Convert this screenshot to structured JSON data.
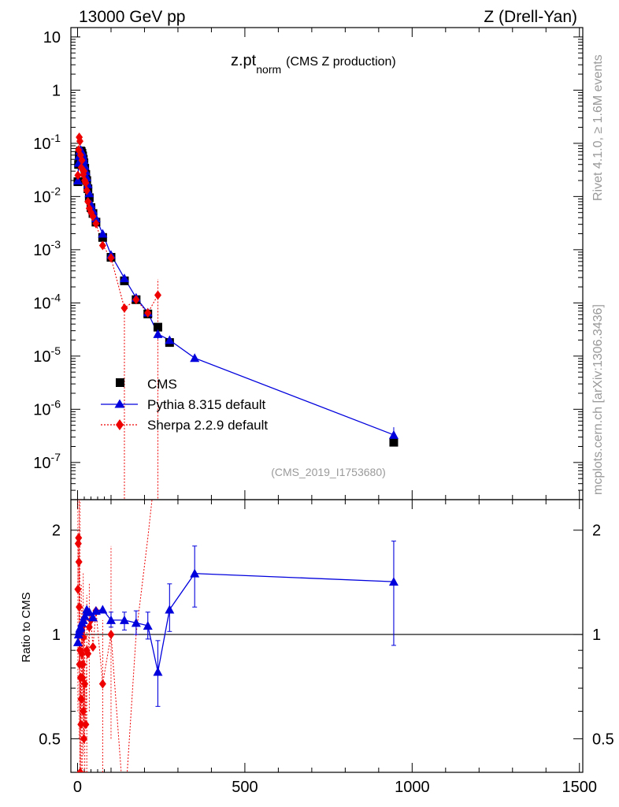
{
  "header": {
    "energy": "13000 GeV pp",
    "process": "Z (Drell-Yan)"
  },
  "plot_title": {
    "main": "z.pt",
    "sub": "norm",
    "extra": "(CMS Z production)"
  },
  "side_labels": {
    "rivet": "Rivet 4.1.0, ≥ 1.6M events",
    "mcplots": "mcplots.cern.ch [arXiv:1306.3436]"
  },
  "analysis_id": "(CMS_2019_I1753680)",
  "ratio_ylabel": "Ratio to CMS",
  "legend": [
    {
      "name": "CMS",
      "color": "#000000",
      "marker": "square"
    },
    {
      "name": "Pythia 8.315 default",
      "color": "#0000dd",
      "marker": "triangle"
    },
    {
      "name": "Sherpa 2.2.9 default",
      "color": "#ee0000",
      "marker": "diamond"
    }
  ],
  "colors": {
    "data": "#000000",
    "pythia": "#0000dd",
    "sherpa": "#ee0000"
  },
  "chart_data": [
    {
      "type": "scatter",
      "panel": "main",
      "title": "z.pt norm (CMS Z production)",
      "xlabel": "",
      "ylabel": "",
      "yscale": "log",
      "xlim": [
        -20,
        1510
      ],
      "ylim": [
        2e-08,
        15
      ],
      "yticks": [
        1e-07,
        1e-06,
        1e-05,
        0.0001,
        0.001,
        0.01,
        0.1,
        1,
        10
      ],
      "ytick_labels": [
        {
          "base": "10",
          "exp": "-7"
        },
        {
          "base": "10",
          "exp": "-6"
        },
        {
          "base": "10",
          "exp": "-5"
        },
        {
          "base": "10",
          "exp": "-4"
        },
        {
          "base": "10",
          "exp": "-3"
        },
        {
          "base": "10",
          "exp": "-2"
        },
        {
          "base": "10",
          "exp": "-1"
        },
        {
          "base": "1",
          "exp": ""
        },
        {
          "base": "10",
          "exp": ""
        }
      ],
      "xticks": [
        0,
        500,
        1000,
        1500
      ],
      "series": [
        {
          "name": "CMS",
          "x": [
            1,
            3,
            5,
            7,
            9,
            11,
            13,
            15,
            17,
            19,
            21.5,
            24.5,
            27.5,
            31,
            35,
            40,
            46,
            55,
            75,
            100,
            140,
            175,
            210,
            240,
            275,
            945
          ],
          "y": [
            0.019,
            0.04,
            0.058,
            0.068,
            0.072,
            0.07,
            0.065,
            0.058,
            0.05,
            0.043,
            0.034,
            0.026,
            0.02,
            0.014,
            0.0095,
            0.0062,
            0.0048,
            0.0033,
            0.0017,
            0.00072,
            0.00026,
            0.000115,
            6.2e-05,
            3.5e-05,
            1.8e-05,
            2.4e-07
          ]
        },
        {
          "name": "Pythia 8.315 default",
          "x": [
            1,
            3,
            5,
            7,
            9,
            11,
            13,
            15,
            17,
            19,
            21.5,
            24.5,
            27.5,
            31,
            35,
            40,
            46,
            55,
            75,
            100,
            140,
            175,
            210,
            240,
            275,
            350,
            945
          ],
          "y": [
            0.02,
            0.043,
            0.058,
            0.072,
            0.075,
            0.073,
            0.069,
            0.062,
            0.055,
            0.048,
            0.038,
            0.03,
            0.023,
            0.017,
            0.0115,
            0.0072,
            0.0055,
            0.0039,
            0.002,
            0.0008,
            0.00029,
            0.000125,
            6.6e-05,
            2.6e-05,
            2e-05,
            9.2e-06,
            3.3e-07
          ]
        },
        {
          "name": "Sherpa 2.2.9 default",
          "x": [
            1,
            3,
            5,
            7,
            9,
            11,
            13,
            15,
            17,
            19,
            21.5,
            24.5,
            27.5,
            31,
            35,
            40,
            46,
            55,
            75,
            100,
            140,
            175,
            210,
            240
          ],
          "y": [
            0.025,
            0.075,
            0.13,
            0.11,
            0.06,
            0.035,
            0.048,
            0.032,
            0.026,
            0.03,
            0.02,
            0.018,
            0.013,
            0.008,
            0.006,
            0.005,
            0.0042,
            0.0031,
            0.0012,
            0.0007,
            8e-05,
            0.000115,
            6.5e-05,
            0.00014
          ]
        }
      ]
    },
    {
      "type": "scatter",
      "panel": "ratio",
      "title": "",
      "xlabel": "",
      "ylabel": "Ratio to CMS",
      "yscale": "log",
      "xlim": [
        -20,
        1510
      ],
      "ylim": [
        0.4,
        2.45
      ],
      "yticks": [
        0.5,
        1,
        2
      ],
      "ytick_labels": [
        "0.5",
        "1",
        "2"
      ],
      "xticks": [
        0,
        500,
        1000,
        1500
      ],
      "xtick_labels": [
        "0",
        "500",
        "1000",
        "1500"
      ],
      "reference_line": 1,
      "series": [
        {
          "name": "Pythia 8.315 default",
          "x": [
            1,
            3,
            5,
            7,
            9,
            13,
            17,
            21.5,
            27.5,
            35,
            46,
            55,
            75,
            100,
            140,
            175,
            210,
            240,
            275,
            350,
            945
          ],
          "y": [
            0.95,
            1.0,
            1.02,
            1.04,
            1.05,
            1.08,
            1.1,
            1.13,
            1.18,
            1.16,
            1.12,
            1.17,
            1.18,
            1.1,
            1.1,
            1.08,
            1.06,
            0.78,
            1.18,
            1.5,
            1.42
          ]
        },
        {
          "name": "Sherpa 2.2.9 default",
          "x": [
            1,
            2,
            3,
            4,
            5,
            6,
            7,
            8,
            9,
            10,
            11,
            12,
            13,
            14,
            15,
            16,
            17,
            18,
            19,
            21.5,
            24.5,
            27.5,
            31,
            35,
            40,
            46,
            55,
            75,
            100
          ],
          "y": [
            1.35,
            1.83,
            1.9,
            1.62,
            1.2,
            0.82,
            0.9,
            0.4,
            0.75,
            0.55,
            0.65,
            1.02,
            0.88,
            1.05,
            0.75,
            0.82,
            0.6,
            0.98,
            0.5,
            0.72,
            0.55,
            0.9,
            0.88,
            1.05,
            1.1,
            0.92,
            1.17,
            0.72,
            1.0
          ]
        }
      ]
    }
  ]
}
